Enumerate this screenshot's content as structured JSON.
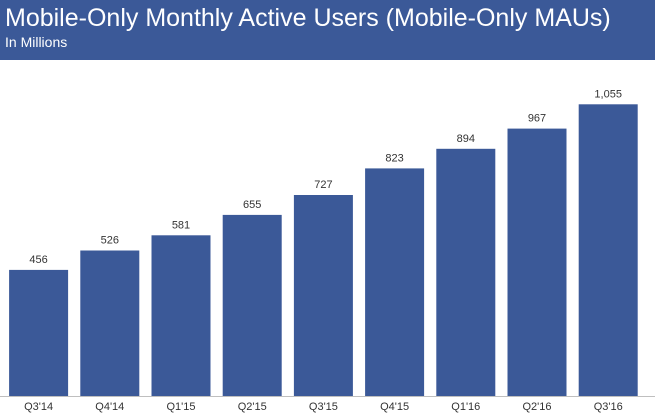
{
  "header": {
    "title": "Mobile-Only Monthly Active Users (Mobile-Only MAUs)",
    "subtitle": "In Millions"
  },
  "colors": {
    "header_bg": "#3b5998",
    "bar": "#3b5998",
    "axis": "#bfbfbf",
    "label_text": "#333333"
  },
  "chart_data": {
    "type": "bar",
    "title": "Mobile-Only Monthly Active Users (Mobile-Only MAUs)",
    "subtitle": "In Millions",
    "categories": [
      "Q3'14",
      "Q4'14",
      "Q1'15",
      "Q2'15",
      "Q3'15",
      "Q4'15",
      "Q1'16",
      "Q2'16",
      "Q3'16"
    ],
    "values": [
      456,
      526,
      581,
      655,
      727,
      823,
      894,
      967,
      1055
    ],
    "value_labels": [
      "456",
      "526",
      "581",
      "655",
      "727",
      "823",
      "894",
      "967",
      "1,055"
    ],
    "xlabel": "",
    "ylabel": "",
    "ylim": [
      0,
      1150
    ],
    "grid": false,
    "legend": "none"
  }
}
